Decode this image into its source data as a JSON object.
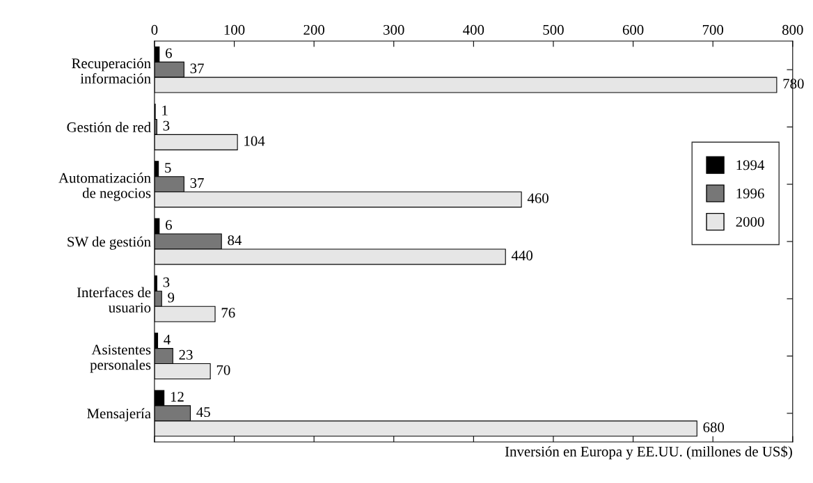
{
  "chart_data": {
    "type": "bar",
    "orientation": "horizontal",
    "categories": [
      "Recuperación\ninformación",
      "Gestión de red",
      "Automatización\nde negocios",
      "SW de gestión",
      "Interfaces de\nusuario",
      "Asistentes\npersonales",
      "Mensajería"
    ],
    "series": [
      {
        "name": "1994",
        "color": "#000000",
        "values": [
          6,
          1,
          5,
          6,
          3,
          4,
          12
        ]
      },
      {
        "name": "1996",
        "color": "#777777",
        "values": [
          37,
          3,
          37,
          84,
          9,
          23,
          45
        ]
      },
      {
        "name": "2000",
        "color": "#e6e6e6",
        "values": [
          780,
          104,
          460,
          440,
          76,
          70,
          680
        ]
      }
    ],
    "xlim": [
      0,
      800
    ],
    "xticks": [
      0,
      100,
      200,
      300,
      400,
      500,
      600,
      700,
      800
    ],
    "xlabel": "Inversión en Europa y EE.UU. (millones de US$)",
    "data_labels": true,
    "legend": "right",
    "grid": false
  }
}
